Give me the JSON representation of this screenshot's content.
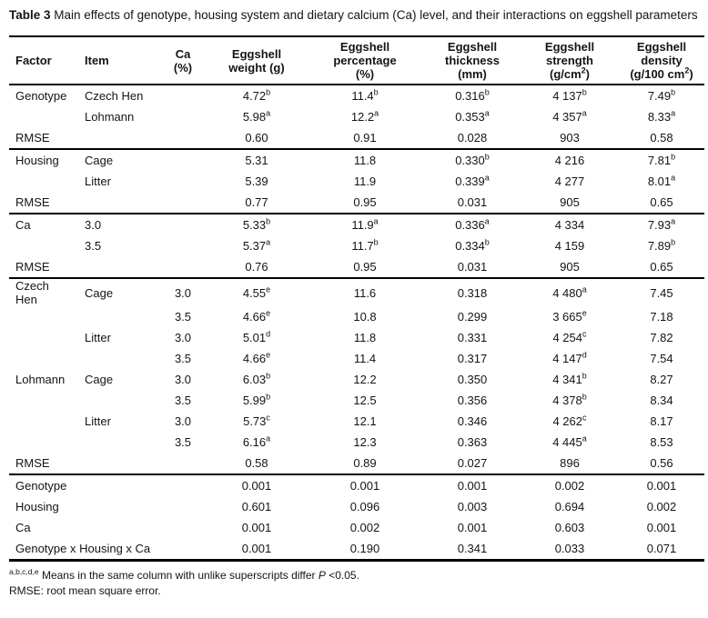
{
  "title": {
    "bold": "Table 3",
    "rest": " Main effects of genotype, housing system and dietary calcium (Ca) level, and their interactions on eggshell parameters"
  },
  "table": {
    "headers": [
      {
        "id": "factor",
        "lines": [
          "Factor"
        ]
      },
      {
        "id": "item",
        "lines": [
          "Item"
        ]
      },
      {
        "id": "ca-percent",
        "lines": [
          "Ca",
          "(%)"
        ]
      },
      {
        "id": "eggshell-weight",
        "lines": [
          "Eggshell",
          "weight (g)"
        ]
      },
      {
        "id": "eggshell-percentage",
        "lines": [
          "Eggshell",
          "percentage",
          "(%)"
        ]
      },
      {
        "id": "eggshell-thickness",
        "lines": [
          "Eggshell",
          "thickness",
          "(mm)"
        ]
      },
      {
        "id": "eggshell-strength",
        "lines": [
          "Eggshell",
          "strength",
          "(g/cm^{2})"
        ]
      },
      {
        "id": "eggshell-density",
        "lines": [
          "Eggshell",
          "density",
          "(g/100 cm^{2})"
        ]
      }
    ],
    "sections": [
      {
        "name": "genotype",
        "rows": [
          {
            "factor": "Genotype",
            "item": "Czech Hen",
            "ca": "",
            "values": [
              "4.72^{b}",
              "11.4^{b}",
              "0.316^{b}",
              "4 137^{b}",
              "7.49^{b}"
            ]
          },
          {
            "factor": "",
            "item": "Lohmann",
            "ca": "",
            "values": [
              "5.98^{a}",
              "12.2^{a}",
              "0.353^{a}",
              "4 357^{a}",
              "8.33^{a}"
            ]
          },
          {
            "factor": "RMSE",
            "item": "",
            "ca": "",
            "values": [
              "0.60",
              "0.91",
              "0.028",
              "903",
              "0.58"
            ]
          }
        ]
      },
      {
        "name": "housing",
        "rows": [
          {
            "factor": "Housing",
            "item": "Cage",
            "ca": "",
            "values": [
              "5.31",
              "11.8",
              "0.330^{b}",
              "4 216",
              "7.81^{b}"
            ]
          },
          {
            "factor": "",
            "item": "Litter",
            "ca": "",
            "values": [
              "5.39",
              "11.9",
              "0.339^{a}",
              "4 277",
              "8.01^{a}"
            ]
          },
          {
            "factor": "RMSE",
            "item": "",
            "ca": "",
            "values": [
              "0.77",
              "0.95",
              "0.031",
              "905",
              "0.65"
            ]
          }
        ]
      },
      {
        "name": "calcium",
        "rows": [
          {
            "factor": "Ca",
            "item": "3.0",
            "ca": "",
            "values": [
              "5.33^{b}",
              "11.9^{a}",
              "0.336^{a}",
              "4 334",
              "7.93^{a}"
            ]
          },
          {
            "factor": "",
            "item": "3.5",
            "ca": "",
            "values": [
              "5.37^{a}",
              "11.7^{b}",
              "0.334^{b}",
              "4 159",
              "7.89^{b}"
            ]
          },
          {
            "factor": "RMSE",
            "item": "",
            "ca": "",
            "values": [
              "0.76",
              "0.95",
              "0.031",
              "905",
              "0.65"
            ]
          }
        ]
      },
      {
        "name": "interaction",
        "rows": [
          {
            "factor": "Czech\nHen",
            "item": "Cage",
            "ca": "3.0",
            "values": [
              "4.55^{e}",
              "11.6",
              "0.318",
              "4 480^{a}",
              "7.45"
            ]
          },
          {
            "factor": "",
            "item": "",
            "ca": "3.5",
            "values": [
              "4.66^{e}",
              "10.8",
              "0.299",
              "3 665^{e}",
              "7.18"
            ]
          },
          {
            "factor": "",
            "item": "Litter",
            "ca": "3.0",
            "values": [
              "5.01^{d}",
              "11.8",
              "0.331",
              "4 254^{c}",
              "7.82"
            ]
          },
          {
            "factor": "",
            "item": "",
            "ca": "3.5",
            "values": [
              "4.66^{e}",
              "11.4",
              "0.317",
              "4 147^{d}",
              "7.54"
            ]
          },
          {
            "factor": "Lohmann",
            "item": "Cage",
            "ca": "3.0",
            "values": [
              "6.03^{b}",
              "12.2",
              "0.350",
              "4 341^{b}",
              "8.27"
            ]
          },
          {
            "factor": "",
            "item": "",
            "ca": "3.5",
            "values": [
              "5.99^{b}",
              "12.5",
              "0.356",
              "4 378^{b}",
              "8.34"
            ]
          },
          {
            "factor": "",
            "item": "Litter",
            "ca": "3.0",
            "values": [
              "5.73^{c}",
              "12.1",
              "0.346",
              "4 262^{c}",
              "8.17"
            ]
          },
          {
            "factor": "",
            "item": "",
            "ca": "3.5",
            "values": [
              "6.16^{a}",
              "12.3",
              "0.363",
              "4 445^{a}",
              "8.53"
            ]
          },
          {
            "factor": "RMSE",
            "item": "",
            "ca": "",
            "values": [
              "0.58",
              "0.89",
              "0.027",
              "896",
              "0.56"
            ]
          }
        ]
      },
      {
        "name": "p-values",
        "label_colspan": true,
        "rows": [
          {
            "label": "Genotype",
            "values": [
              "0.001",
              "0.001",
              "0.001",
              "0.002",
              "0.001"
            ]
          },
          {
            "label": "Housing",
            "values": [
              "0.601",
              "0.096",
              "0.003",
              "0.694",
              "0.002"
            ]
          },
          {
            "label": "Ca",
            "values": [
              "0.001",
              "0.002",
              "0.001",
              "0.603",
              "0.001"
            ]
          },
          {
            "label": "Genotype x Housing x Ca",
            "values": [
              "0.001",
              "0.190",
              "0.341",
              "0.033",
              "0.071"
            ]
          }
        ]
      }
    ]
  },
  "footnotes": [
    "^{a,b,c,d,e} Means in the same column with unlike superscripts differ *P* <0.05.",
    "RMSE: root mean square error."
  ]
}
